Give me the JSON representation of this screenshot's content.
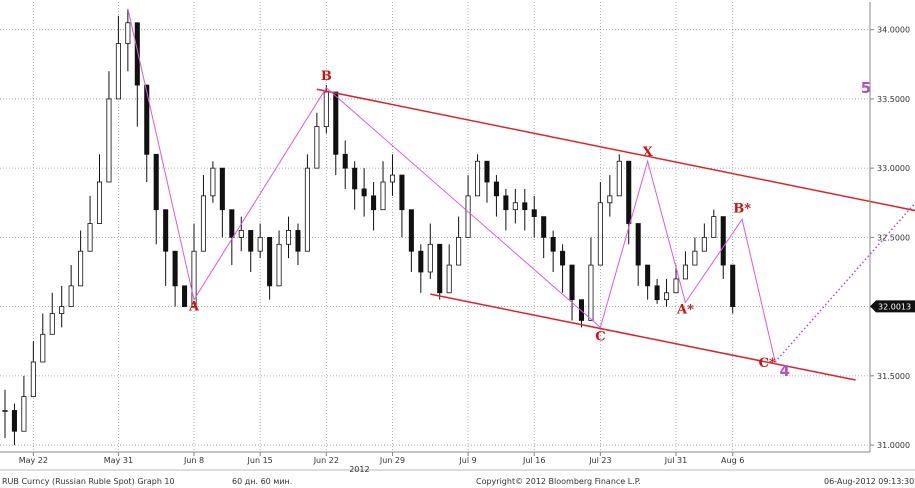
{
  "chart_data": {
    "type": "candlestick",
    "title": "",
    "ylim": [
      30.95,
      34.2
    ],
    "y_ticks": [
      "31.0000",
      "31.5000",
      "32.0000",
      "32.5000",
      "33.0000",
      "33.5000",
      "34.0000"
    ],
    "y_tick_values": [
      31.0,
      31.5,
      32.0,
      32.5,
      33.0,
      33.5,
      34.0
    ],
    "x_ticks": [
      "May 22",
      "May 31",
      "Jun 8",
      "Jun 15",
      "Jun 22",
      "Jun 29",
      "Jul 9",
      "Jul 16",
      "Jul 23",
      "Jul 31",
      "Aug 6"
    ],
    "x_tick_index": [
      3,
      12,
      20,
      27,
      34,
      41,
      49,
      56,
      63,
      71,
      77
    ],
    "x_year": "2012",
    "n_slots": 92,
    "last_price": "32.0013",
    "last_price_value": 32.0013,
    "series": [
      {
        "x": [
          0,
          1,
          2,
          3,
          4,
          5,
          6,
          7,
          8,
          9,
          10,
          11,
          12,
          13,
          14,
          15,
          16,
          17,
          18,
          19,
          20,
          21,
          22,
          23,
          24,
          25,
          26,
          27,
          28,
          29,
          30,
          31,
          32,
          33,
          34,
          35,
          36,
          37,
          38,
          39,
          40,
          41,
          42,
          43,
          44,
          45,
          46,
          47,
          48,
          49,
          50,
          51,
          52,
          53,
          54,
          55,
          56,
          57,
          58,
          59,
          60,
          61,
          62,
          63,
          64,
          65,
          66,
          67,
          68,
          69,
          70,
          71,
          72,
          73,
          74,
          75,
          76,
          77
        ],
        "close": [
          31.25,
          31.1,
          31.35,
          31.6,
          31.8,
          31.95,
          32.0,
          32.15,
          32.4,
          32.6,
          32.9,
          33.5,
          33.9,
          34.05,
          33.6,
          33.1,
          32.7,
          32.4,
          32.15,
          32.0,
          32.4,
          32.8,
          33.0,
          32.7,
          32.5,
          32.55,
          32.4,
          32.5,
          32.15,
          32.45,
          32.55,
          32.4,
          33.0,
          33.3,
          33.55,
          33.1,
          33.0,
          32.85,
          32.8,
          32.7,
          32.9,
          32.95,
          32.7,
          32.4,
          32.25,
          32.45,
          32.1,
          32.3,
          32.5,
          32.8,
          33.05,
          32.9,
          32.8,
          32.7,
          32.75,
          32.7,
          32.65,
          32.5,
          32.4,
          32.3,
          32.05,
          31.9,
          32.3,
          32.75,
          32.8,
          33.05,
          32.6,
          32.3,
          32.15,
          32.05,
          32.1,
          32.2,
          32.3,
          32.4,
          32.5,
          32.65,
          32.3,
          32.0
        ],
        "high": [
          31.4,
          31.3,
          31.5,
          31.75,
          31.95,
          32.1,
          32.15,
          32.3,
          32.55,
          32.8,
          33.1,
          33.7,
          34.1,
          34.15,
          33.8,
          33.4,
          32.9,
          32.6,
          32.3,
          32.15,
          32.6,
          32.95,
          33.05,
          32.85,
          32.65,
          32.65,
          32.55,
          32.6,
          32.35,
          32.55,
          32.65,
          32.6,
          33.1,
          33.4,
          33.6,
          33.35,
          33.2,
          33.05,
          33.0,
          32.9,
          33.05,
          33.1,
          32.9,
          32.65,
          32.45,
          32.6,
          32.35,
          32.45,
          32.65,
          32.95,
          33.1,
          33.05,
          32.95,
          32.85,
          32.85,
          32.85,
          32.8,
          32.65,
          32.55,
          32.45,
          32.2,
          32.05,
          32.5,
          32.9,
          32.95,
          33.1,
          32.85,
          32.5,
          32.3,
          32.2,
          32.2,
          32.3,
          32.4,
          32.5,
          32.6,
          32.7,
          32.6,
          32.1
        ],
        "low": [
          31.05,
          31.0,
          31.15,
          31.45,
          31.65,
          31.8,
          31.85,
          32.0,
          32.2,
          32.45,
          32.7,
          33.2,
          33.65,
          33.7,
          33.3,
          32.9,
          32.45,
          32.15,
          32.0,
          32.05,
          32.1,
          32.5,
          32.75,
          32.5,
          32.3,
          32.4,
          32.25,
          32.35,
          32.05,
          32.2,
          32.35,
          32.3,
          32.5,
          33.0,
          33.25,
          32.95,
          32.85,
          32.7,
          32.65,
          32.55,
          32.75,
          32.8,
          32.5,
          32.25,
          32.1,
          32.2,
          32.05,
          32.1,
          32.3,
          32.55,
          32.85,
          32.75,
          32.65,
          32.55,
          32.6,
          32.55,
          32.5,
          32.35,
          32.25,
          32.1,
          31.9,
          31.85,
          32.0,
          32.5,
          32.65,
          32.8,
          32.45,
          32.15,
          32.05,
          32.02,
          32.0,
          32.1,
          32.2,
          32.3,
          32.4,
          32.5,
          32.2,
          31.95
        ]
      }
    ],
    "wave_labels": [
      {
        "text": "A",
        "x": 20,
        "y": 32.05
      },
      {
        "text": "B",
        "x": 34,
        "y": 33.58
      },
      {
        "text": "C",
        "x": 63,
        "y": 31.85
      },
      {
        "text": "X",
        "x": 68,
        "y": 33.05
      },
      {
        "text": "A*",
        "x": 72,
        "y": 32.03
      },
      {
        "text": "B*",
        "x": 78,
        "y": 32.63
      },
      {
        "text": "C*",
        "x": 81.5,
        "y": 31.6
      }
    ],
    "wave_numbers": [
      {
        "text": "4",
        "x": 82.5,
        "y": 31.6
      },
      {
        "text": "5",
        "x": 106,
        "y": 33.5
      }
    ],
    "wave_path": [
      {
        "x": 13,
        "y": 34.15
      },
      {
        "x": 20,
        "y": 32.05
      },
      {
        "x": 34,
        "y": 33.58
      },
      {
        "x": 63,
        "y": 31.85
      },
      {
        "x": 68,
        "y": 33.05
      },
      {
        "x": 72,
        "y": 32.03
      },
      {
        "x": 78,
        "y": 32.63
      },
      {
        "x": 81.5,
        "y": 31.6
      }
    ],
    "projection": [
      {
        "x": 81.5,
        "y": 31.6
      },
      {
        "x": 106,
        "y": 33.5
      }
    ],
    "channel_upper": [
      {
        "x": 33,
        "y": 33.57
      },
      {
        "x": 98,
        "y": 32.67
      }
    ],
    "channel_lower": [
      {
        "x": 45,
        "y": 32.09
      },
      {
        "x": 90,
        "y": 31.47
      }
    ],
    "colors": {
      "candle": "#111111",
      "channel": "#d9242a",
      "wave": "#d85adf",
      "projection": "#b24fc7",
      "label": "#cc1111",
      "price_tag": "#111111"
    }
  },
  "footer": {
    "security": "RUB Curncy (Russian Ruble Spot) Graph 10",
    "period": "60 дн. 60 мин.",
    "copyright": "Copyright© 2012 Bloomberg Finance L.P.",
    "timestamp": "06-Aug-2012 09:13:30"
  }
}
